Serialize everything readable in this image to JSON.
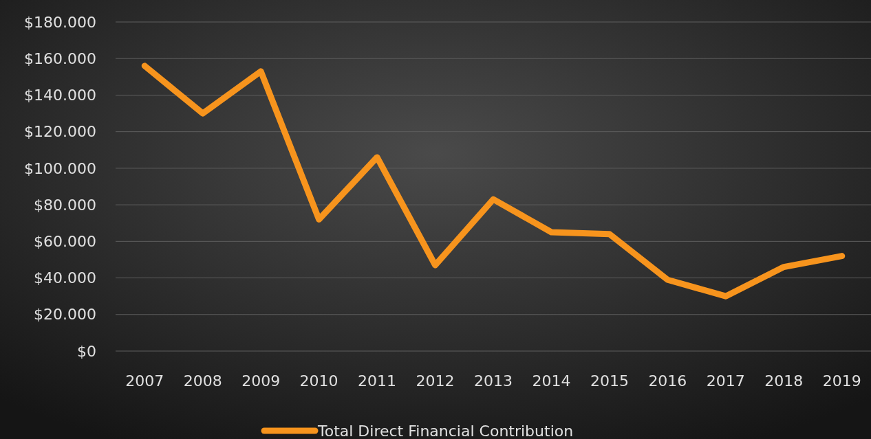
{
  "chart_data": {
    "type": "line",
    "categories": [
      "2007",
      "2008",
      "2009",
      "2010",
      "2011",
      "2012",
      "2013",
      "2014",
      "2015",
      "2016",
      "2017",
      "2018",
      "2019"
    ],
    "series": [
      {
        "name": "Total Direct Financial Contribution",
        "color": "#f7941d",
        "values": [
          156000,
          130000,
          153000,
          72000,
          106000,
          47000,
          83000,
          65000,
          64000,
          39000,
          30000,
          46000,
          52000
        ]
      }
    ],
    "ylim": [
      0,
      180000
    ],
    "yticks": [
      {
        "value": 0,
        "label": "$0"
      },
      {
        "value": 20000,
        "label": "$20.000"
      },
      {
        "value": 40000,
        "label": "$40.000"
      },
      {
        "value": 60000,
        "label": "$60.000"
      },
      {
        "value": 80000,
        "label": "$80.000"
      },
      {
        "value": 100000,
        "label": "$100.000"
      },
      {
        "value": 120000,
        "label": "$120.000"
      },
      {
        "value": 140000,
        "label": "$140.000"
      },
      {
        "value": 160000,
        "label": "$160.000"
      },
      {
        "value": 180000,
        "label": "$180.000"
      }
    ],
    "grid": "y",
    "legend": "bottom",
    "marker": "none",
    "line_style": "solid"
  }
}
